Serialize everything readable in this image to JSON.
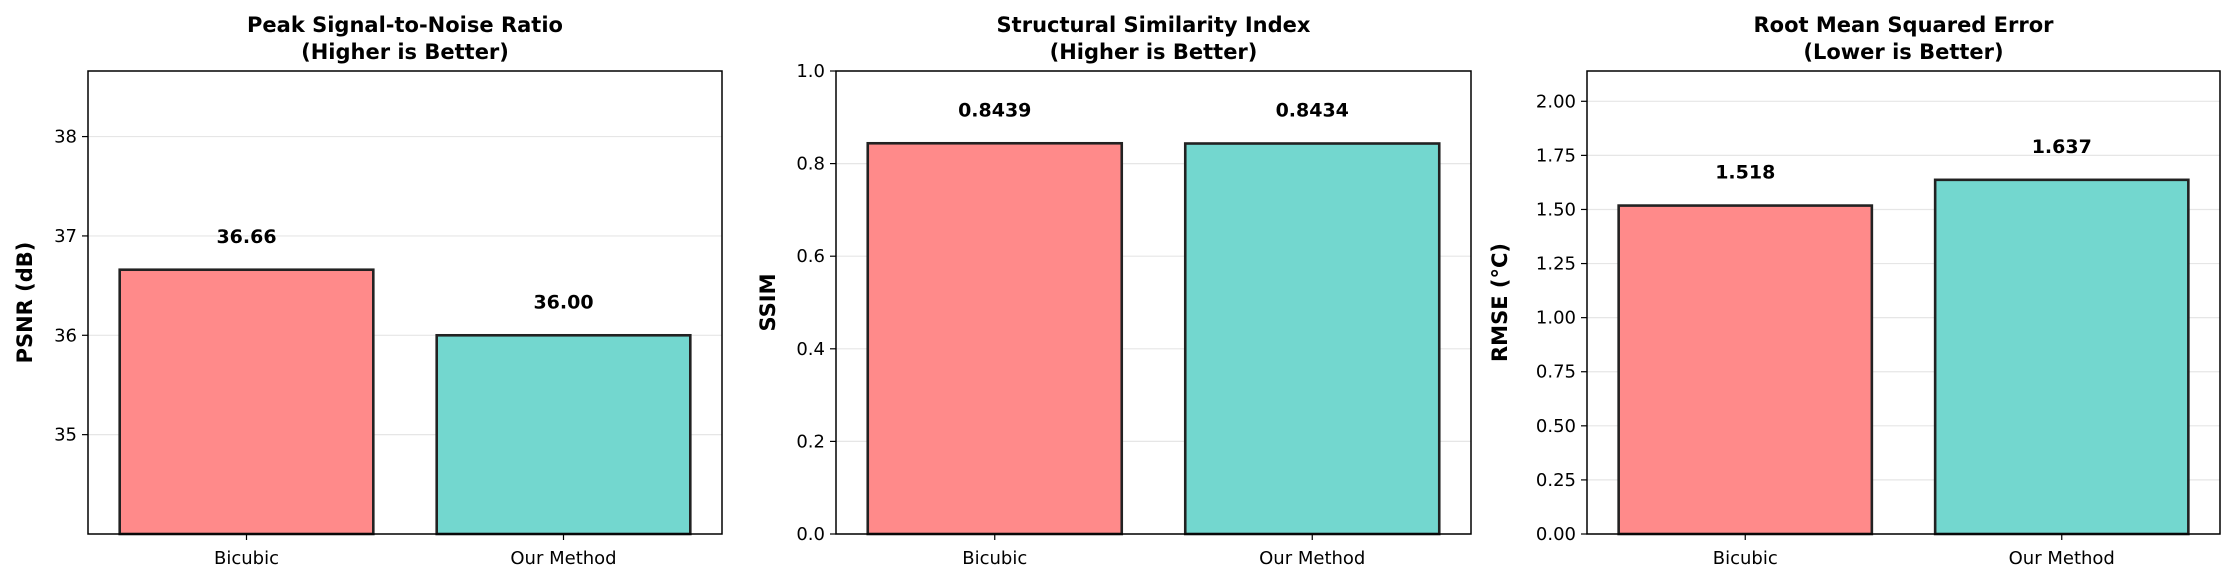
{
  "chart_data": [
    {
      "type": "bar",
      "title": "Peak Signal-to-Noise Ratio\n(Higher is Better)",
      "xlabel": "",
      "ylabel": "PSNR (dB)",
      "categories": [
        "Bicubic",
        "Our Method"
      ],
      "values": [
        36.66,
        36.0
      ],
      "data_labels": [
        "36.66",
        "36.00"
      ],
      "ylim": [
        34.0,
        38.66
      ],
      "yticks": [
        35,
        36,
        37,
        38
      ],
      "ytick_labels": [
        "35",
        "36",
        "37",
        "38"
      ],
      "grid": "y",
      "legend": "none"
    },
    {
      "type": "bar",
      "title": "Structural Similarity Index\n(Higher is Better)",
      "xlabel": "",
      "ylabel": "SSIM",
      "categories": [
        "Bicubic",
        "Our Method"
      ],
      "values": [
        0.8439,
        0.8434
      ],
      "data_labels": [
        "0.8439",
        "0.8434"
      ],
      "ylim": [
        0,
        1.0
      ],
      "yticks": [
        0,
        0.2,
        0.4,
        0.6,
        0.8,
        1.0
      ],
      "ytick_labels": [
        "0.0",
        "0.2",
        "0.4",
        "0.6",
        "0.8",
        "1.0"
      ],
      "grid": "y",
      "legend": "none"
    },
    {
      "type": "bar",
      "title": "Root Mean Squared Error\n(Lower is Better)",
      "xlabel": "",
      "ylabel": "RMSE (°C)",
      "categories": [
        "Bicubic",
        "Our Method"
      ],
      "values": [
        1.518,
        1.637
      ],
      "data_labels": [
        "1.518",
        "1.637"
      ],
      "ylim": [
        0,
        2.14
      ],
      "yticks": [
        0,
        0.25,
        0.5,
        0.75,
        1.0,
        1.25,
        1.5,
        1.75,
        2.0
      ],
      "ytick_labels": [
        "0.00",
        "0.25",
        "0.50",
        "0.75",
        "1.00",
        "1.25",
        "1.50",
        "1.75",
        "2.00"
      ],
      "grid": "y",
      "legend": "none"
    }
  ],
  "colors": {
    "bar_colors": [
      "#FF8A8A",
      "#73D7CF"
    ],
    "bar_edge": "#222222",
    "grid": "#e6e6e6",
    "axis": "#000000"
  }
}
